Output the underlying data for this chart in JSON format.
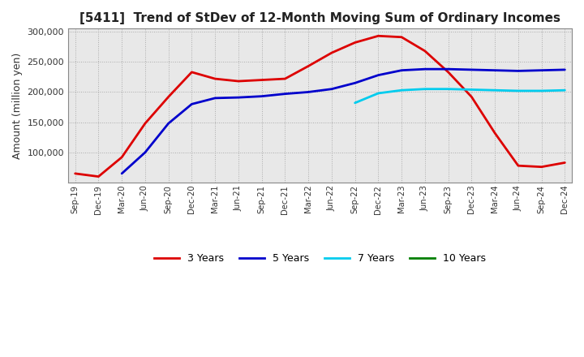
{
  "title": "[5411]  Trend of StDev of 12-Month Moving Sum of Ordinary Incomes",
  "ylabel": "Amount (million yen)",
  "background_color": "#ffffff",
  "plot_bg_color": "#e8e8e8",
  "grid_color": "#aaaaaa",
  "ylim": [
    50000,
    305000
  ],
  "yticks": [
    100000,
    150000,
    200000,
    250000,
    300000
  ],
  "x_labels": [
    "Sep-19",
    "Dec-19",
    "Mar-20",
    "Jun-20",
    "Sep-20",
    "Dec-20",
    "Mar-21",
    "Jun-21",
    "Sep-21",
    "Dec-21",
    "Mar-22",
    "Jun-22",
    "Sep-22",
    "Dec-22",
    "Mar-23",
    "Jun-23",
    "Sep-23",
    "Dec-23",
    "Mar-24",
    "Jun-24",
    "Sep-24",
    "Dec-24"
  ],
  "series": {
    "3 Years": {
      "color": "#dd0000",
      "linewidth": 2.0,
      "data": [
        65000,
        60000,
        92000,
        148000,
        192000,
        233000,
        222000,
        218000,
        220000,
        222000,
        243000,
        265000,
        282000,
        293000,
        291000,
        268000,
        233000,
        192000,
        132000,
        78000,
        76000,
        83000
      ]
    },
    "5 Years": {
      "color": "#0000cc",
      "linewidth": 2.0,
      "data": [
        null,
        null,
        65000,
        100000,
        148000,
        180000,
        190000,
        191000,
        193000,
        197000,
        200000,
        205000,
        215000,
        228000,
        236000,
        238000,
        238000,
        237000,
        236000,
        235000,
        236000,
        237000
      ]
    },
    "7 Years": {
      "color": "#00ccee",
      "linewidth": 2.0,
      "data": [
        null,
        null,
        null,
        null,
        null,
        null,
        null,
        null,
        null,
        null,
        null,
        null,
        182000,
        198000,
        203000,
        205000,
        205000,
        204000,
        203000,
        202000,
        202000,
        203000
      ]
    },
    "10 Years": {
      "color": "#008000",
      "linewidth": 2.0,
      "data": [
        null,
        null,
        null,
        null,
        null,
        null,
        null,
        null,
        null,
        null,
        null,
        null,
        null,
        null,
        null,
        null,
        null,
        null,
        null,
        null,
        null,
        null
      ]
    }
  },
  "legend_labels": [
    "3 Years",
    "5 Years",
    "7 Years",
    "10 Years"
  ],
  "legend_colors": [
    "#dd0000",
    "#0000cc",
    "#00ccee",
    "#008000"
  ]
}
